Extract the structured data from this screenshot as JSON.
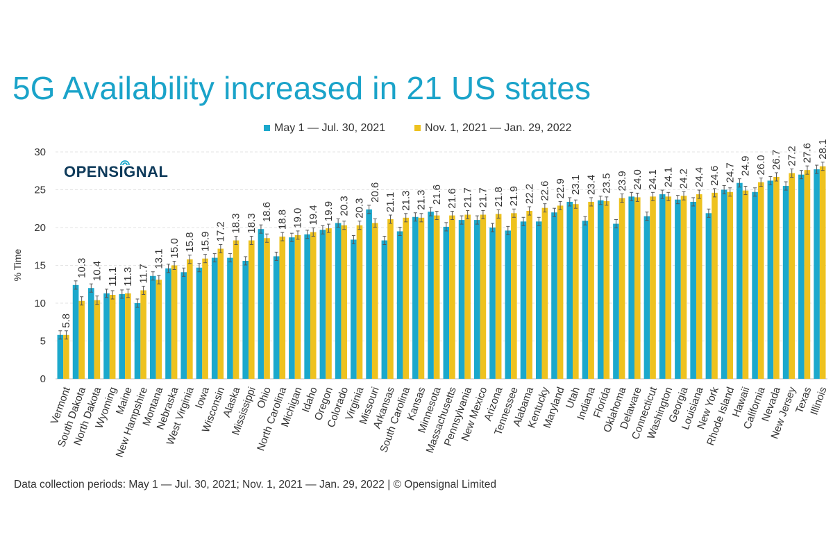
{
  "colors": {
    "series_1": "#1ba8cc",
    "series_2": "#eec21f",
    "title": "#1aa3c9",
    "logo": "#0e3a5a",
    "logo_accent": "#1ba8cc",
    "error_bar": "#555555",
    "grid": "#e3e3e3",
    "text": "#333333"
  },
  "logo": {
    "text": "OPENSIGNAL"
  },
  "footnote": "Data collection periods: May 1 — Jul. 30, 2021; Nov. 1, 2021 — Jan. 29, 2022 | © Opensignal Limited",
  "chart_data": {
    "type": "bar",
    "title": "5G Availability increased in 21 US states",
    "xlabel": "",
    "ylabel": "% Time",
    "ylim": [
      0,
      30
    ],
    "yticks": [
      0,
      5,
      10,
      15,
      20,
      25,
      30
    ],
    "grid": true,
    "legend_position": "top",
    "error_bars": true,
    "categories": [
      "Vermont",
      "South Dakota",
      "North Dakota",
      "Wyoming",
      "Maine",
      "New Hampshire",
      "Montana",
      "Nebraska",
      "West Virginia",
      "Iowa",
      "Wisconsin",
      "Alaska",
      "Mississippi",
      "Ohio",
      "North Carolina",
      "Michigan",
      "Idaho",
      "Oregon",
      "Colorado",
      "Virginia",
      "Missouri",
      "Arkansas",
      "South Carolina",
      "Kansas",
      "Minnesota",
      "Massachusetts",
      "Pennsylvania",
      "New Mexico",
      "Arizona",
      "Tennessee",
      "Alabama",
      "Kentucky",
      "Maryland",
      "Utah",
      "Indiana",
      "Florida",
      "Oklahoma",
      "Delaware",
      "Connecticut",
      "Washington",
      "Georgia",
      "Louisiana",
      "New York",
      "Rhode Island",
      "Hawaii",
      "California",
      "Nevada",
      "New Jersey",
      "Texas",
      "Illinois"
    ],
    "series": [
      {
        "name": "May 1 — Jul. 30, 2021",
        "values": [
          5.8,
          12.4,
          12.0,
          11.3,
          11.2,
          10.0,
          13.6,
          14.6,
          14.1,
          14.7,
          16.0,
          16.0,
          15.6,
          19.8,
          16.2,
          18.7,
          19.1,
          19.7,
          20.6,
          18.4,
          22.4,
          18.3,
          19.5,
          21.4,
          22.1,
          20.1,
          21.0,
          21.0,
          20.0,
          19.6,
          20.8,
          20.8,
          22.0,
          23.4,
          20.9,
          23.6,
          20.5,
          24.1,
          21.5,
          24.4,
          23.7,
          23.4,
          21.9,
          25.0,
          25.9,
          24.7,
          26.2,
          25.5,
          27.0,
          27.7
        ]
      },
      {
        "name": "Nov. 1, 2021 — Jan. 29, 2022",
        "values": [
          5.8,
          10.3,
          10.4,
          11.1,
          11.3,
          11.7,
          13.1,
          15.0,
          15.8,
          15.9,
          17.2,
          18.3,
          18.3,
          18.6,
          18.8,
          19.0,
          19.4,
          19.9,
          20.3,
          20.3,
          20.6,
          21.1,
          21.3,
          21.3,
          21.6,
          21.6,
          21.7,
          21.7,
          21.8,
          21.9,
          22.2,
          22.6,
          22.9,
          23.1,
          23.4,
          23.5,
          23.9,
          24.0,
          24.1,
          24.1,
          24.2,
          24.4,
          24.6,
          24.7,
          24.9,
          26.0,
          26.7,
          27.2,
          27.6,
          28.1
        ]
      }
    ],
    "data_labels_series": "Nov. 1, 2021 — Jan. 29, 2022",
    "data_labels": [
      "5.8",
      "10.3",
      "10.4",
      "11.1",
      "11.3",
      "11.7",
      "13.1",
      "15.0",
      "15.8",
      "15.9",
      "17.2",
      "18.3",
      "18.3",
      "18.6",
      "18.8",
      "19.0",
      "19.4",
      "19.9",
      "20.3",
      "20.3",
      "20.6",
      "21.1",
      "21.3",
      "21.3",
      "21.6",
      "21.6",
      "21.7",
      "21.7",
      "21.8",
      "21.9",
      "22.2",
      "22.6",
      "22.9",
      "23.1",
      "23.4",
      "23.5",
      "23.9",
      "24.0",
      "24.1",
      "24.1",
      "24.2",
      "24.4",
      "24.6",
      "24.7",
      "24.9",
      "26.0",
      "26.7",
      "27.2",
      "27.6",
      "28.1"
    ]
  }
}
